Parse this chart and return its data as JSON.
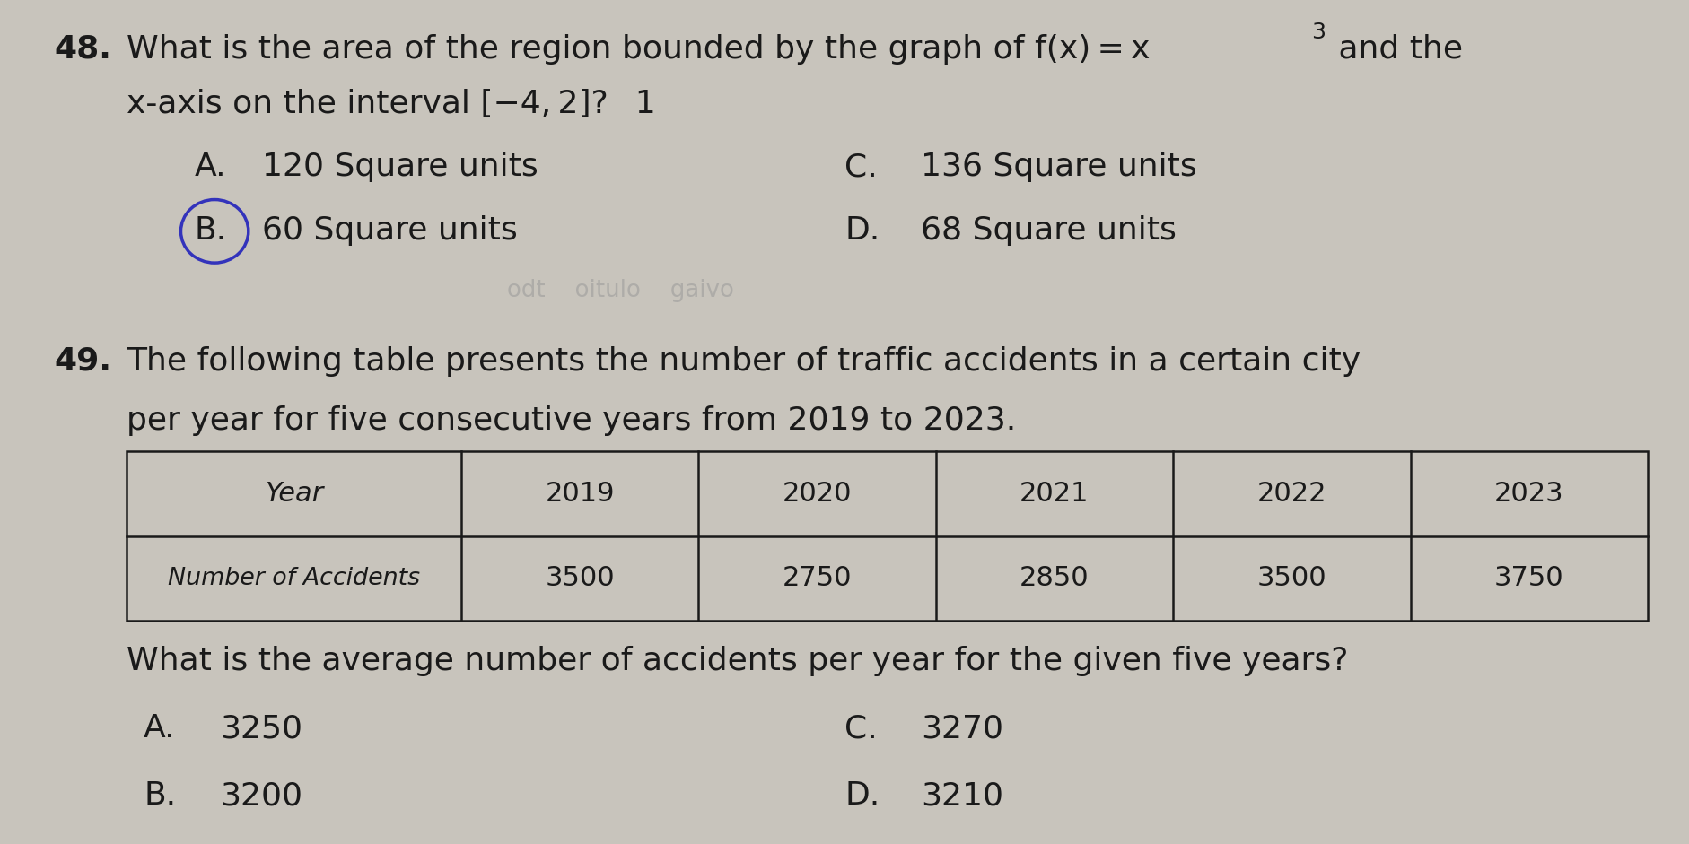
{
  "bg_color": "#c8c4bc",
  "text_color": "#1a1a1a",
  "q48_number": "48.",
  "q48_A_text": "120 Square units",
  "q48_B_text": "60 Square units",
  "q48_C_text": "136 Square units",
  "q48_D_text": "68 Square units",
  "q49_number": "49.",
  "q49_line1": "The following table presents the number of traffic accidents in a certain city",
  "q49_line2": "per year for five consecutive years from 2019 to 2023.",
  "table_headers": [
    "Year",
    "2019",
    "2020",
    "2021",
    "2022",
    "2023"
  ],
  "table_row2_label": "Number of Accidents",
  "table_row2_values": [
    "3500",
    "2750",
    "2850",
    "3500",
    "3750"
  ],
  "q49_question": "What is the average number of accidents per year for the given five years?",
  "q49_A_text": "3250",
  "q49_B_text": "3200",
  "q49_C_text": "3270",
  "q49_D_text": "3210",
  "font_size_main": 22,
  "font_size_large": 26
}
